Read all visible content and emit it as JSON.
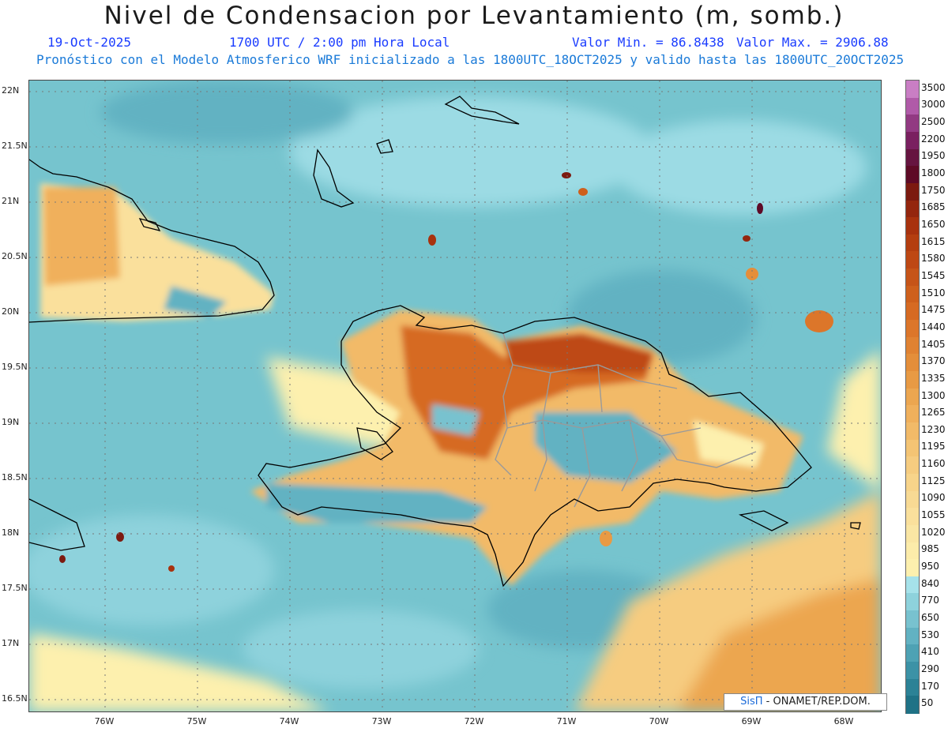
{
  "header": {
    "title": "Nivel de Condensacion por Levantamiento (m, somb.)",
    "date": "19-Oct-2025",
    "time": "1700 UTC / 2:00 pm Hora Local",
    "min_value": "Valor Min. = 86.8438",
    "max_value": "Valor Max. = 2906.88",
    "model_line": "Pronóstico con el Modelo Atmosferico WRF inicializado a las 1800UTC_18OCT2025 y valido hasta las  1800UTC_20OCT2025"
  },
  "axes": {
    "lat_labels": [
      "22N",
      "21.5N",
      "21N",
      "20.5N",
      "20N",
      "19.5N",
      "19N",
      "18.5N",
      "18N",
      "17.5N",
      "17N",
      "16.5N"
    ],
    "lon_labels": [
      "76W",
      "75W",
      "74W",
      "73W",
      "72W",
      "71W",
      "70W",
      "69W",
      "68W"
    ]
  },
  "colorbar": {
    "labels": [
      "3500",
      "3000",
      "2500",
      "2200",
      "1950",
      "1800",
      "1750",
      "1685",
      "1650",
      "1615",
      "1580",
      "1545",
      "1510",
      "1475",
      "1440",
      "1405",
      "1370",
      "1335",
      "1300",
      "1265",
      "1230",
      "1195",
      "1160",
      "1125",
      "1090",
      "1055",
      "1020",
      "985",
      "950",
      "840",
      "770",
      "650",
      "530",
      "410",
      "290",
      "170",
      "50"
    ],
    "colors": [
      "#c97ec4",
      "#b05aa8",
      "#923a82",
      "#7a2060",
      "#661440",
      "#5e0a26",
      "#7c1a10",
      "#94260e",
      "#a8320e",
      "#b43e10",
      "#be4814",
      "#c65418",
      "#ce601c",
      "#d66a22",
      "#dc762a",
      "#e08232",
      "#e48e3a",
      "#e89a44",
      "#eca650",
      "#f0b05c",
      "#f2ba68",
      "#f4c474",
      "#f6cc80",
      "#f8d48a",
      "#f8da94",
      "#fae09c",
      "#fae6a4",
      "#fcecaa",
      "#fdf0ae",
      "#a6e2ea",
      "#8ed2dc",
      "#78c2cf",
      "#62b2c2",
      "#4ea2b4",
      "#3c92a6",
      "#2c8296",
      "#1f7286"
    ],
    "value_min": 50,
    "value_max": 3500
  },
  "credit": {
    "brand": "SisΠ",
    "text": " -  ONAMET/REP.DOM."
  },
  "map": {
    "projection": "lat-lon",
    "lat_range": [
      16.4,
      22.1
    ],
    "lon_range": [
      -76.6,
      -67.6
    ],
    "ocean_color": "#76c4ce",
    "land_warm_color": "#d68a44",
    "coast_color": "#000000",
    "border_color": "#9a9a9a",
    "grid_color": "#777777"
  }
}
